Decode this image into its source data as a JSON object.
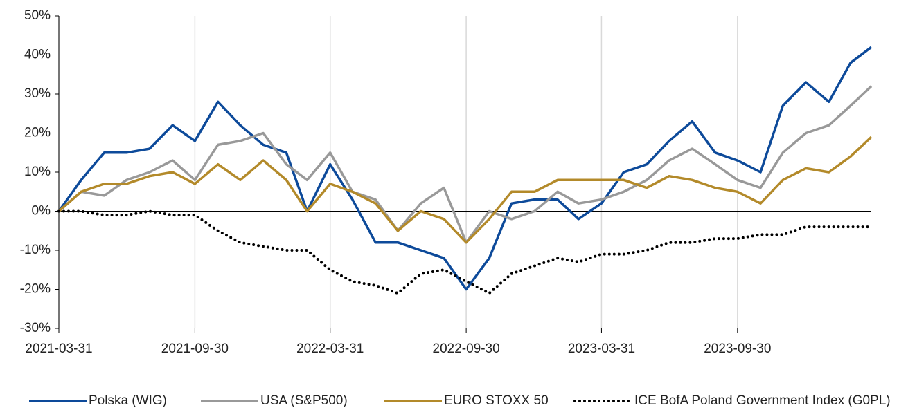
{
  "chart_data": {
    "type": "line",
    "x": [
      "2021-03-31",
      "2021-04-30",
      "2021-05-31",
      "2021-06-30",
      "2021-07-31",
      "2021-08-31",
      "2021-09-30",
      "2021-10-31",
      "2021-11-30",
      "2021-12-31",
      "2022-01-31",
      "2022-02-28",
      "2022-03-31",
      "2022-04-30",
      "2022-05-31",
      "2022-06-30",
      "2022-07-31",
      "2022-08-31",
      "2022-09-30",
      "2022-10-31",
      "2022-11-30",
      "2022-12-31",
      "2023-01-31",
      "2023-02-28",
      "2023-03-31",
      "2023-04-30",
      "2023-05-31",
      "2023-06-30",
      "2023-07-31",
      "2023-08-31",
      "2023-09-30",
      "2023-10-31",
      "2023-11-30",
      "2023-12-31",
      "2024-01-31",
      "2024-02-29",
      "2024-03-28"
    ],
    "series": [
      {
        "name": "Polska (WIG)",
        "color": "#0d4a9a",
        "line_style": "solid",
        "values": [
          0,
          8,
          15,
          15,
          16,
          22,
          18,
          28,
          22,
          17,
          15,
          0,
          12,
          3,
          -8,
          -8,
          -10,
          -12,
          -20,
          -12,
          2,
          3,
          3,
          -2,
          2,
          10,
          12,
          18,
          23,
          15,
          13,
          10,
          27,
          33,
          28,
          38,
          42
        ]
      },
      {
        "name": "USA (S&P500)",
        "color": "#999999",
        "line_style": "solid",
        "values": [
          0,
          5,
          4,
          8,
          10,
          13,
          8,
          17,
          18,
          20,
          12,
          8,
          15,
          5,
          3,
          -5,
          2,
          6,
          -8,
          0,
          -2,
          0,
          5,
          2,
          3,
          5,
          8,
          13,
          16,
          12,
          8,
          6,
          15,
          20,
          22,
          27,
          32
        ]
      },
      {
        "name": "EURO STOXX 50",
        "color": "#b38a2a",
        "line_style": "solid",
        "values": [
          0,
          5,
          7,
          7,
          9,
          10,
          7,
          12,
          8,
          13,
          8,
          0,
          7,
          5,
          2,
          -5,
          0,
          -2,
          -8,
          -2,
          5,
          5,
          8,
          8,
          8,
          8,
          6,
          9,
          8,
          6,
          5,
          2,
          8,
          11,
          10,
          14,
          19
        ]
      },
      {
        "name": "ICE BofA Poland Government Index (G0PL)",
        "color": "#000000",
        "line_style": "dotted",
        "values": [
          0,
          0,
          -1,
          -1,
          0,
          -1,
          -1,
          -5,
          -8,
          -9,
          -10,
          -10,
          -15,
          -18,
          -19,
          -21,
          -16,
          -15,
          -18,
          -21,
          -16,
          -14,
          -12,
          -13,
          -11,
          -11,
          -10,
          -8,
          -8,
          -7,
          -7,
          -6,
          -6,
          -4,
          -4,
          -4,
          -4
        ]
      }
    ],
    "xlim": [
      "2021-03-31",
      "2024-03-28"
    ],
    "xticks": [
      "2021-03-31",
      "2021-09-30",
      "2022-03-31",
      "2022-09-30",
      "2023-03-31",
      "2023-09-30"
    ],
    "ylim": [
      -30,
      50
    ],
    "yticks": [
      {
        "value": -30,
        "label": "-30%"
      },
      {
        "value": -20,
        "label": "-20%"
      },
      {
        "value": -10,
        "label": "-10%"
      },
      {
        "value": 0,
        "label": "0%"
      },
      {
        "value": 10,
        "label": "10%"
      },
      {
        "value": 20,
        "label": "20%"
      },
      {
        "value": 30,
        "label": "30%"
      },
      {
        "value": 40,
        "label": "40%"
      },
      {
        "value": 50,
        "label": "50%"
      }
    ],
    "grid": true,
    "legend": "bottom"
  }
}
